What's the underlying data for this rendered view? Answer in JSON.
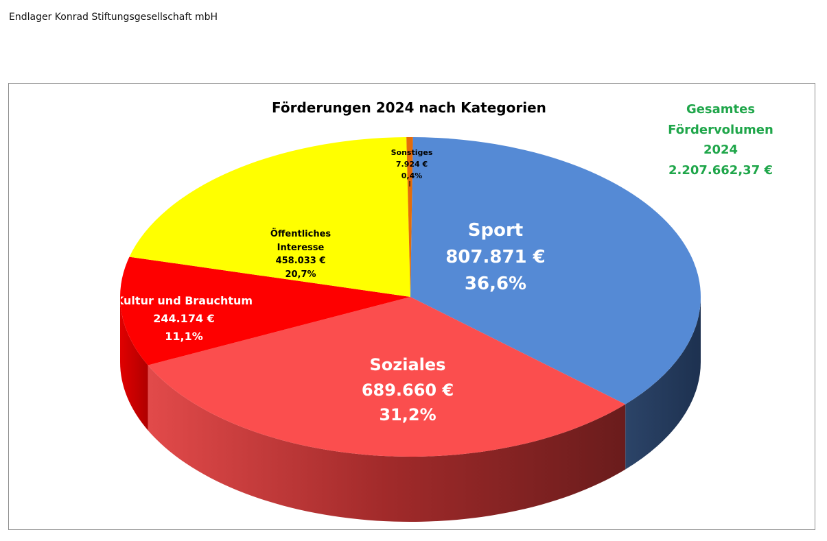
{
  "document": {
    "organization": "Endlager Konrad Stiftungsgesellschaft mbH"
  },
  "total_box": {
    "lines": [
      "Gesamtes",
      "Fördervolumen",
      "2024",
      "2.207.662,37 €"
    ],
    "color": "#1fa64a"
  },
  "chart_data": {
    "type": "pie",
    "style": "3d-perspective",
    "title": "Förderungen 2024 nach Kategorien",
    "slices": [
      {
        "name": "Sport",
        "value": 807871,
        "value_label": "807.871 €",
        "percent_label": "36,6%",
        "color": "#558ad5"
      },
      {
        "name": "Soziales",
        "value": 689660,
        "value_label": "689.660 €",
        "percent_label": "31,2%",
        "color": "#fb4e4e"
      },
      {
        "name": "Kultur und Brauchtum",
        "value": 244174,
        "value_label": "244.174 €",
        "percent_label": "11,1%",
        "color": "#fe0000"
      },
      {
        "name": "Öffentliches Interesse",
        "value": 458033,
        "value_label": "458.033 €",
        "percent_label": "20,7%",
        "color": "#ffff00"
      },
      {
        "name": "Sonstiges",
        "value": 7924,
        "value_label": "7.924 €",
        "percent_label": "0,4%",
        "color": "#e46c0a"
      }
    ]
  }
}
